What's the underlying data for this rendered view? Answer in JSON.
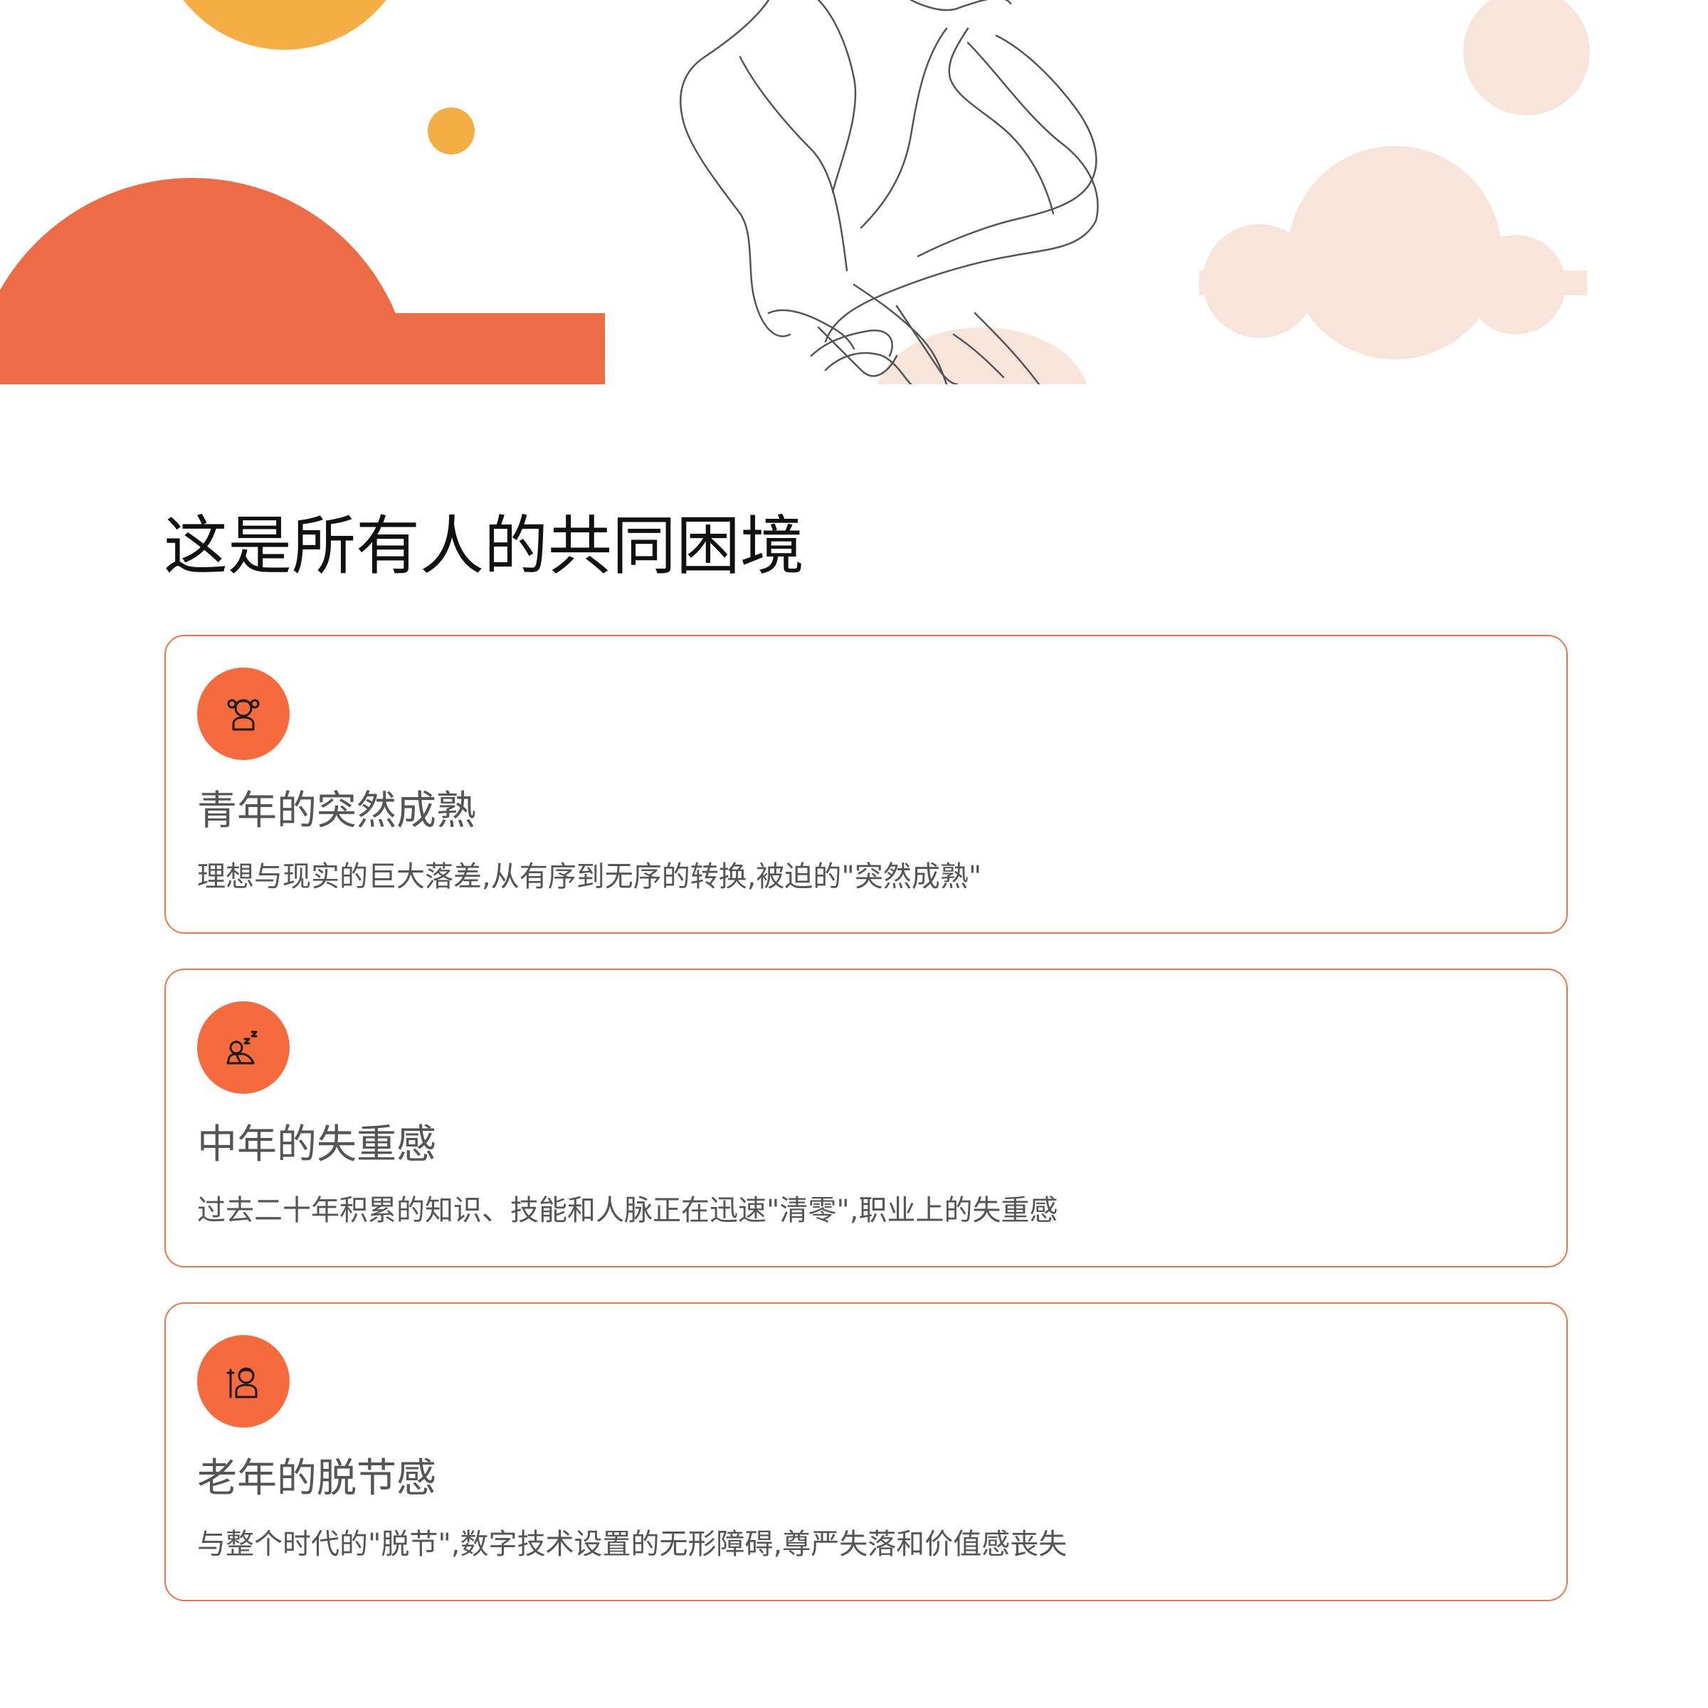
{
  "page": {
    "title": "这是所有人的共同困境"
  },
  "colors": {
    "accent": "#f56b3d",
    "card_border": "#f07447",
    "sun_orange": "#f5ad45",
    "cloud_orange": "#ed6b45",
    "cloud_pink": "#f7e4da",
    "title_text": "#111111",
    "body_text": "#555555"
  },
  "cards": [
    {
      "icon": "girl-icon",
      "title": "青年的突然成熟",
      "description": "理想与现实的巨大落差,从有序到无序的转换,被迫的\"突然成熟\""
    },
    {
      "icon": "sleeping-person-icon",
      "title": "中年的失重感",
      "description": "过去二十年积累的知识、技能和人脉正在迅速\"清零\",职业上的失重感"
    },
    {
      "icon": "elder-person-icon",
      "title": "老年的脱节感",
      "description": "与整个时代的\"脱节\",数字技术设置的无形障碍,尊严失落和价值感丧失"
    }
  ]
}
